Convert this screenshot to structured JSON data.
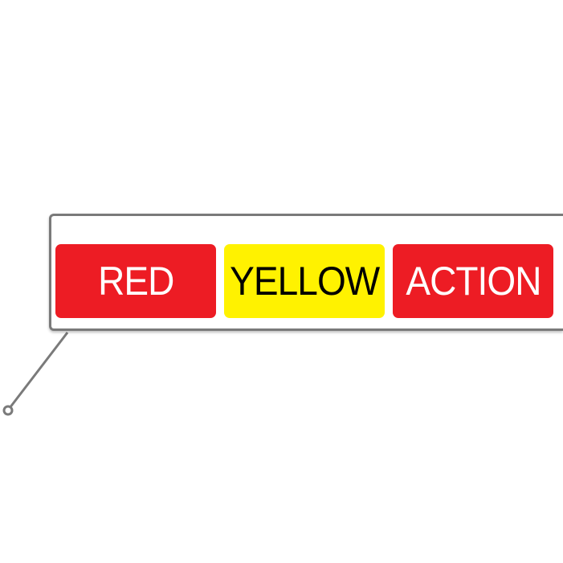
{
  "callout": {
    "buttons": [
      {
        "label": "RED",
        "color": "#ed1c24",
        "text_color": "#ffffff"
      },
      {
        "label": "YELLOW",
        "color": "#fff200",
        "text_color": "#000000"
      },
      {
        "label": "ACTION",
        "color": "#ed1c24",
        "text_color": "#ffffff"
      }
    ],
    "border_color": "#7a7a7a"
  }
}
